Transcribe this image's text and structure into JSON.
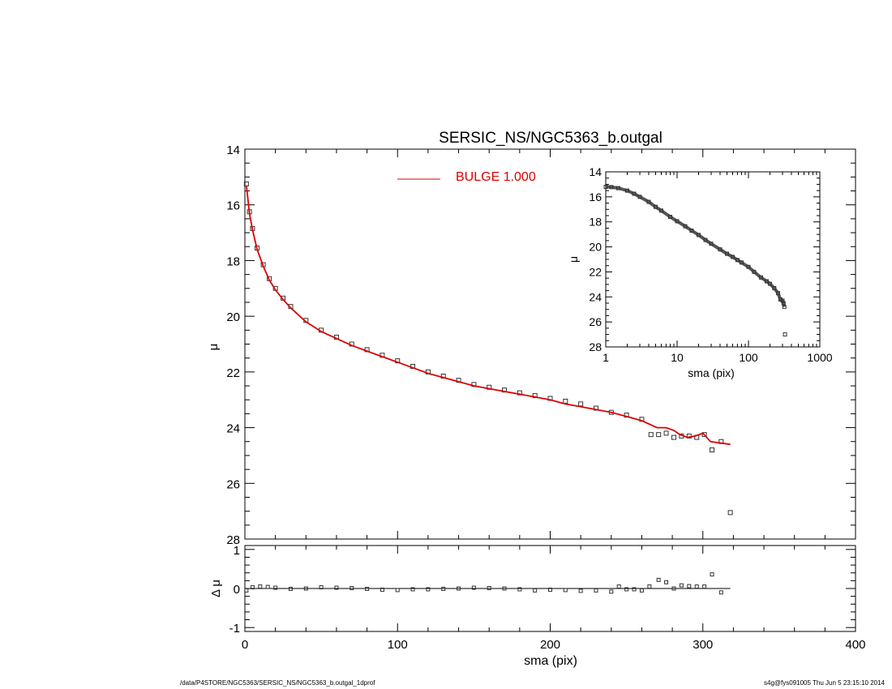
{
  "title": "SERSIC_NS/NGC5363_b.outgal",
  "footer_left": "/data/P4STORE/NGC5363/SERSIC_NS/NGC5363_b.outgal_1dprof",
  "footer_right": "s4g@fys091005  Thu Jun  5 23:15:10 2014",
  "colors": {
    "model": "#dd0000",
    "data": "#333333",
    "axis": "#000000"
  },
  "chart_data": [
    {
      "panel": "main",
      "type": "scatter",
      "title": "SERSIC_NS/NGC5363_b.outgal",
      "xlabel": "",
      "ylabel": "μ",
      "xlim": [
        0,
        400
      ],
      "ylim": [
        28,
        14
      ],
      "y_inverted": true,
      "xticks": [
        "0",
        "100",
        "200",
        "300",
        "400"
      ],
      "yticks": [
        "14",
        "16",
        "18",
        "20",
        "22",
        "24",
        "26",
        "28"
      ],
      "legend": {
        "label": "BULGE  1.000",
        "placement": "top-center"
      },
      "series": [
        {
          "name": "BULGE  1.000",
          "type": "line",
          "color": "#dd0000",
          "x": [
            1,
            3,
            5,
            8,
            12,
            16,
            20,
            25,
            30,
            40,
            50,
            60,
            70,
            80,
            90,
            100,
            110,
            120,
            130,
            140,
            150,
            160,
            170,
            180,
            190,
            200,
            210,
            220,
            230,
            240,
            250,
            260,
            270,
            276,
            281,
            285,
            290,
            295,
            300,
            305,
            318
          ],
          "y": [
            15.3,
            16.3,
            16.9,
            17.6,
            18.2,
            18.7,
            19.05,
            19.4,
            19.7,
            20.2,
            20.55,
            20.8,
            21.05,
            21.25,
            21.45,
            21.65,
            21.85,
            22.05,
            22.2,
            22.35,
            22.5,
            22.6,
            22.7,
            22.8,
            22.9,
            23.0,
            23.15,
            23.25,
            23.35,
            23.45,
            23.6,
            23.75,
            24.0,
            24.0,
            24.1,
            24.25,
            24.35,
            24.3,
            24.2,
            24.5,
            24.6
          ]
        },
        {
          "name": "",
          "type": "scatter",
          "marker": "square",
          "color": "#333333",
          "x": [
            1,
            3,
            5,
            8,
            12,
            16,
            20,
            25,
            30,
            40,
            50,
            60,
            70,
            80,
            90,
            100,
            110,
            120,
            130,
            140,
            150,
            160,
            170,
            180,
            190,
            200,
            210,
            220,
            230,
            240,
            250,
            260,
            266,
            271,
            276,
            281,
            286,
            291,
            296,
            301,
            306,
            312,
            318
          ],
          "y": [
            15.25,
            16.25,
            16.85,
            17.55,
            18.15,
            18.65,
            19.0,
            19.35,
            19.65,
            20.15,
            20.5,
            20.75,
            21.0,
            21.2,
            21.4,
            21.6,
            21.8,
            22.0,
            22.15,
            22.3,
            22.45,
            22.55,
            22.65,
            22.75,
            22.85,
            22.95,
            23.05,
            23.15,
            23.3,
            23.45,
            23.55,
            23.7,
            24.25,
            24.25,
            24.2,
            24.35,
            24.3,
            24.3,
            24.35,
            24.25,
            24.8,
            24.5,
            27.05
          ]
        }
      ]
    },
    {
      "panel": "residual",
      "type": "scatter",
      "xlabel": "sma (pix)",
      "ylabel": "Δ μ",
      "xlim": [
        0,
        400
      ],
      "ylim": [
        -1.1,
        1.1
      ],
      "xticks": [
        "0",
        "100",
        "200",
        "300",
        "400"
      ],
      "yticks": [
        "-1",
        "0",
        "1"
      ],
      "series": [
        {
          "name": "",
          "type": "line",
          "color": "#000000",
          "x": [
            0,
            318
          ],
          "y": [
            0,
            0
          ]
        },
        {
          "name": "",
          "type": "scatter",
          "marker": "square",
          "color": "#333333",
          "x": [
            1,
            5,
            10,
            15,
            20,
            30,
            40,
            50,
            60,
            70,
            80,
            90,
            100,
            110,
            120,
            130,
            140,
            150,
            160,
            170,
            180,
            190,
            200,
            210,
            220,
            230,
            240,
            245,
            250,
            255,
            260,
            265,
            271,
            276,
            281,
            286,
            291,
            296,
            301,
            306,
            312
          ],
          "y": [
            -0.05,
            0.03,
            0.05,
            0.04,
            0.02,
            -0.01,
            0.0,
            0.03,
            0.02,
            0.01,
            -0.01,
            -0.03,
            -0.04,
            -0.02,
            -0.02,
            -0.01,
            0.0,
            0.02,
            0.01,
            0.0,
            -0.02,
            -0.05,
            -0.03,
            -0.04,
            -0.06,
            -0.05,
            -0.08,
            0.05,
            -0.02,
            -0.02,
            -0.05,
            0.05,
            0.22,
            0.16,
            0.0,
            0.08,
            0.06,
            0.05,
            0.05,
            0.36,
            -0.1
          ]
        }
      ]
    },
    {
      "panel": "inset",
      "type": "scatter",
      "xlabel": "sma (pix)",
      "ylabel": "μ",
      "xscale": "log",
      "xlim": [
        1,
        1000
      ],
      "ylim": [
        28,
        14
      ],
      "y_inverted": true,
      "xticks": [
        "1",
        "10",
        "100",
        "1000"
      ],
      "yticks": [
        "14",
        "16",
        "18",
        "20",
        "22",
        "24",
        "26",
        "28"
      ],
      "series": [
        {
          "name": "",
          "type": "scatter",
          "marker": "square",
          "color": "#333333",
          "x": [
            1.0,
            1.2,
            1.5,
            2,
            2.5,
            3,
            4,
            5,
            6,
            8,
            10,
            13,
            16,
            20,
            25,
            30,
            40,
            50,
            60,
            70,
            80,
            100,
            120,
            150,
            180,
            200,
            230,
            260,
            280,
            300,
            310,
            318,
            325
          ],
          "y": [
            15.2,
            15.22,
            15.3,
            15.5,
            15.75,
            16.0,
            16.4,
            16.8,
            17.1,
            17.6,
            17.95,
            18.35,
            18.7,
            19.05,
            19.45,
            19.75,
            20.2,
            20.55,
            20.8,
            21.05,
            21.25,
            21.6,
            22.0,
            22.45,
            22.75,
            22.95,
            23.3,
            23.7,
            24.2,
            24.3,
            24.5,
            24.8,
            27.0
          ]
        }
      ]
    }
  ]
}
